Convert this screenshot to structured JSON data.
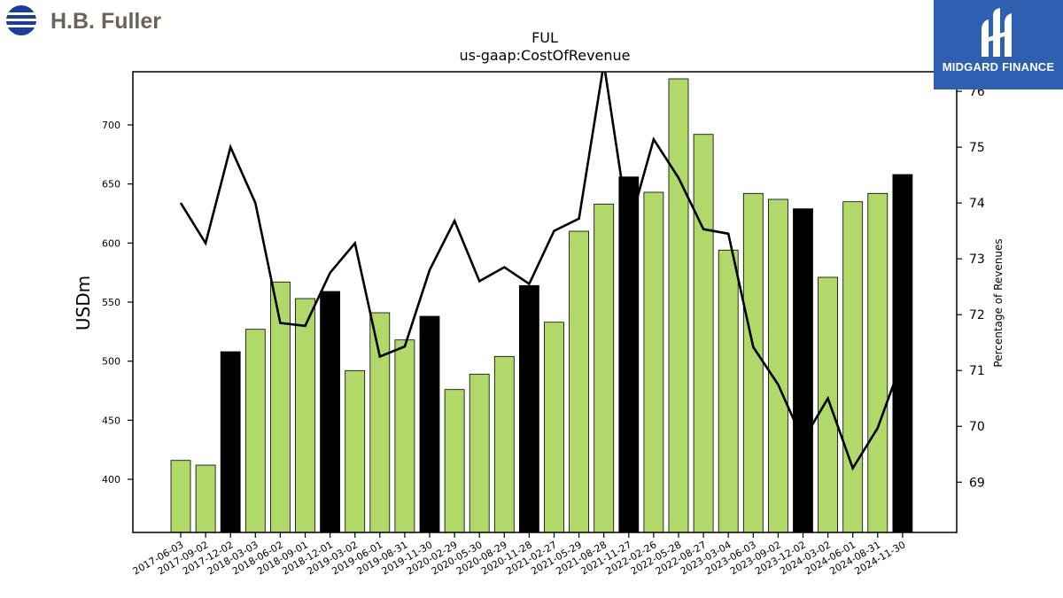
{
  "logos": {
    "left_brand": "H.B. Fuller",
    "right_brand": "MIDGARD FINANCE"
  },
  "chart_data": {
    "type": "bar",
    "title": "FUL",
    "subtitle": "us-gaap:CostOfRevenue",
    "ylabel": "USDm",
    "y2label": "Percentage of Revenues",
    "ylim": [
      355,
      745
    ],
    "y2lim": [
      68.1,
      76.35
    ],
    "yticks": [
      400,
      450,
      500,
      550,
      600,
      650,
      700
    ],
    "y2ticks": [
      69,
      70,
      71,
      72,
      73,
      74,
      75,
      76
    ],
    "colors": {
      "quarter": "#b0d96a",
      "fiscal_year_end": "#000000",
      "line": "#000000"
    },
    "categories": [
      "2017-06-03",
      "2017-09-02",
      "2017-12-02",
      "2018-03-03",
      "2018-06-02",
      "2018-09-01",
      "2018-12-01",
      "2019-03-02",
      "2019-06-01",
      "2019-08-31",
      "2019-11-30",
      "2020-02-29",
      "2020-05-30",
      "2020-08-29",
      "2020-11-28",
      "2021-02-27",
      "2021-05-29",
      "2021-08-28",
      "2021-11-27",
      "2022-02-26",
      "2022-05-28",
      "2022-08-27",
      "2023-03-04",
      "2023-06-03",
      "2023-09-02",
      "2023-12-02",
      "2024-03-02",
      "2024-06-01",
      "2024-08-31",
      "2024-11-30"
    ],
    "bar_values": [
      416,
      412,
      508,
      527,
      567,
      553,
      559,
      492,
      541,
      518,
      538,
      476,
      489,
      504,
      564,
      533,
      610,
      633,
      656,
      643,
      739,
      692,
      594,
      642,
      637,
      629,
      571,
      635,
      642,
      658
    ],
    "bar_highlight": [
      false,
      false,
      true,
      false,
      false,
      false,
      true,
      false,
      false,
      false,
      true,
      false,
      false,
      false,
      true,
      false,
      false,
      false,
      true,
      false,
      false,
      false,
      false,
      false,
      false,
      true,
      false,
      false,
      false,
      true
    ],
    "line_values": [
      74.0,
      73.28,
      75.0,
      74.0,
      71.85,
      71.8,
      72.75,
      73.28,
      71.25,
      71.43,
      72.8,
      73.68,
      72.6,
      72.85,
      72.55,
      73.5,
      73.72,
      76.5,
      73.55,
      75.14,
      74.45,
      73.53,
      73.45,
      71.42,
      70.75,
      69.75,
      70.5,
      69.25,
      69.97,
      71.2
    ]
  }
}
